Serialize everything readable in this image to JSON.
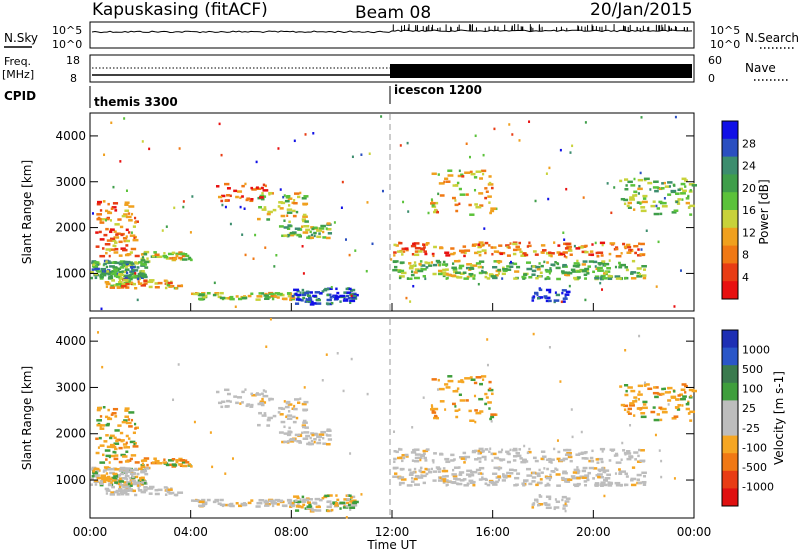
{
  "header": {
    "station": "Kapuskasing (fitACF)",
    "beam": "Beam 08",
    "date": "20/Jan/2015"
  },
  "noise_panel": {
    "left_label": "N.Sky",
    "right_label": "N.Search",
    "left_ticks": [
      "10^5",
      "10^0"
    ],
    "right_ticks": [
      "10^5",
      "10^0"
    ]
  },
  "freq_panel": {
    "left_label_1": "Freq.",
    "left_label_2": "[MHz]",
    "right_label": "Nave",
    "left_ticks": [
      "18",
      "8"
    ],
    "right_ticks": [
      "60",
      "0"
    ]
  },
  "cpid_panel": {
    "label": "CPID",
    "modes": [
      {
        "name": "themis 3300",
        "start_hour": 0
      },
      {
        "name": "icescon 1200",
        "start_hour": 12
      }
    ]
  },
  "colors": {
    "power_scale": [
      "#1010e6",
      "#2a4fc0",
      "#3c8d6e",
      "#3f9e4a",
      "#5bc23a",
      "#c8d23a",
      "#f0a01e",
      "#f07814",
      "#e83c14",
      "#e81010"
    ],
    "velocity_scale": [
      "#1e2fb4",
      "#2a56c8",
      "#3a7a4e",
      "#3f9e3c",
      "#bdbdbd",
      "#bdbdbd",
      "#f5a623",
      "#f07814",
      "#e83c14",
      "#e01010"
    ]
  },
  "chart_data": [
    {
      "type": "heatmap",
      "title": "",
      "xlabel": "",
      "ylabel": "Slant Range [km]",
      "xlim": [
        0,
        24
      ],
      "ylim": [
        180,
        4500
      ],
      "colorbar_label": "Power [dB]",
      "colorbar_ticks": [
        "28",
        "24",
        "20",
        "16",
        "12",
        "8",
        "4"
      ],
      "yticks": [
        "1000",
        "2000",
        "3000",
        "4000"
      ]
    },
    {
      "type": "heatmap",
      "title": "",
      "xlabel": "Time UT",
      "ylabel": "Slant Range [km]",
      "xlim": [
        0,
        24
      ],
      "ylim": [
        180,
        4500
      ],
      "colorbar_label": "Velocity [m s-1]",
      "colorbar_ticks": [
        "1000",
        "500",
        "100",
        "25",
        "-25",
        "-100",
        "-500",
        "-1000"
      ],
      "yticks": [
        "1000",
        "2000",
        "3000",
        "4000"
      ],
      "xticks": [
        "00:00",
        "04:00",
        "08:00",
        "12:00",
        "16:00",
        "20:00",
        "00:00"
      ]
    }
  ]
}
